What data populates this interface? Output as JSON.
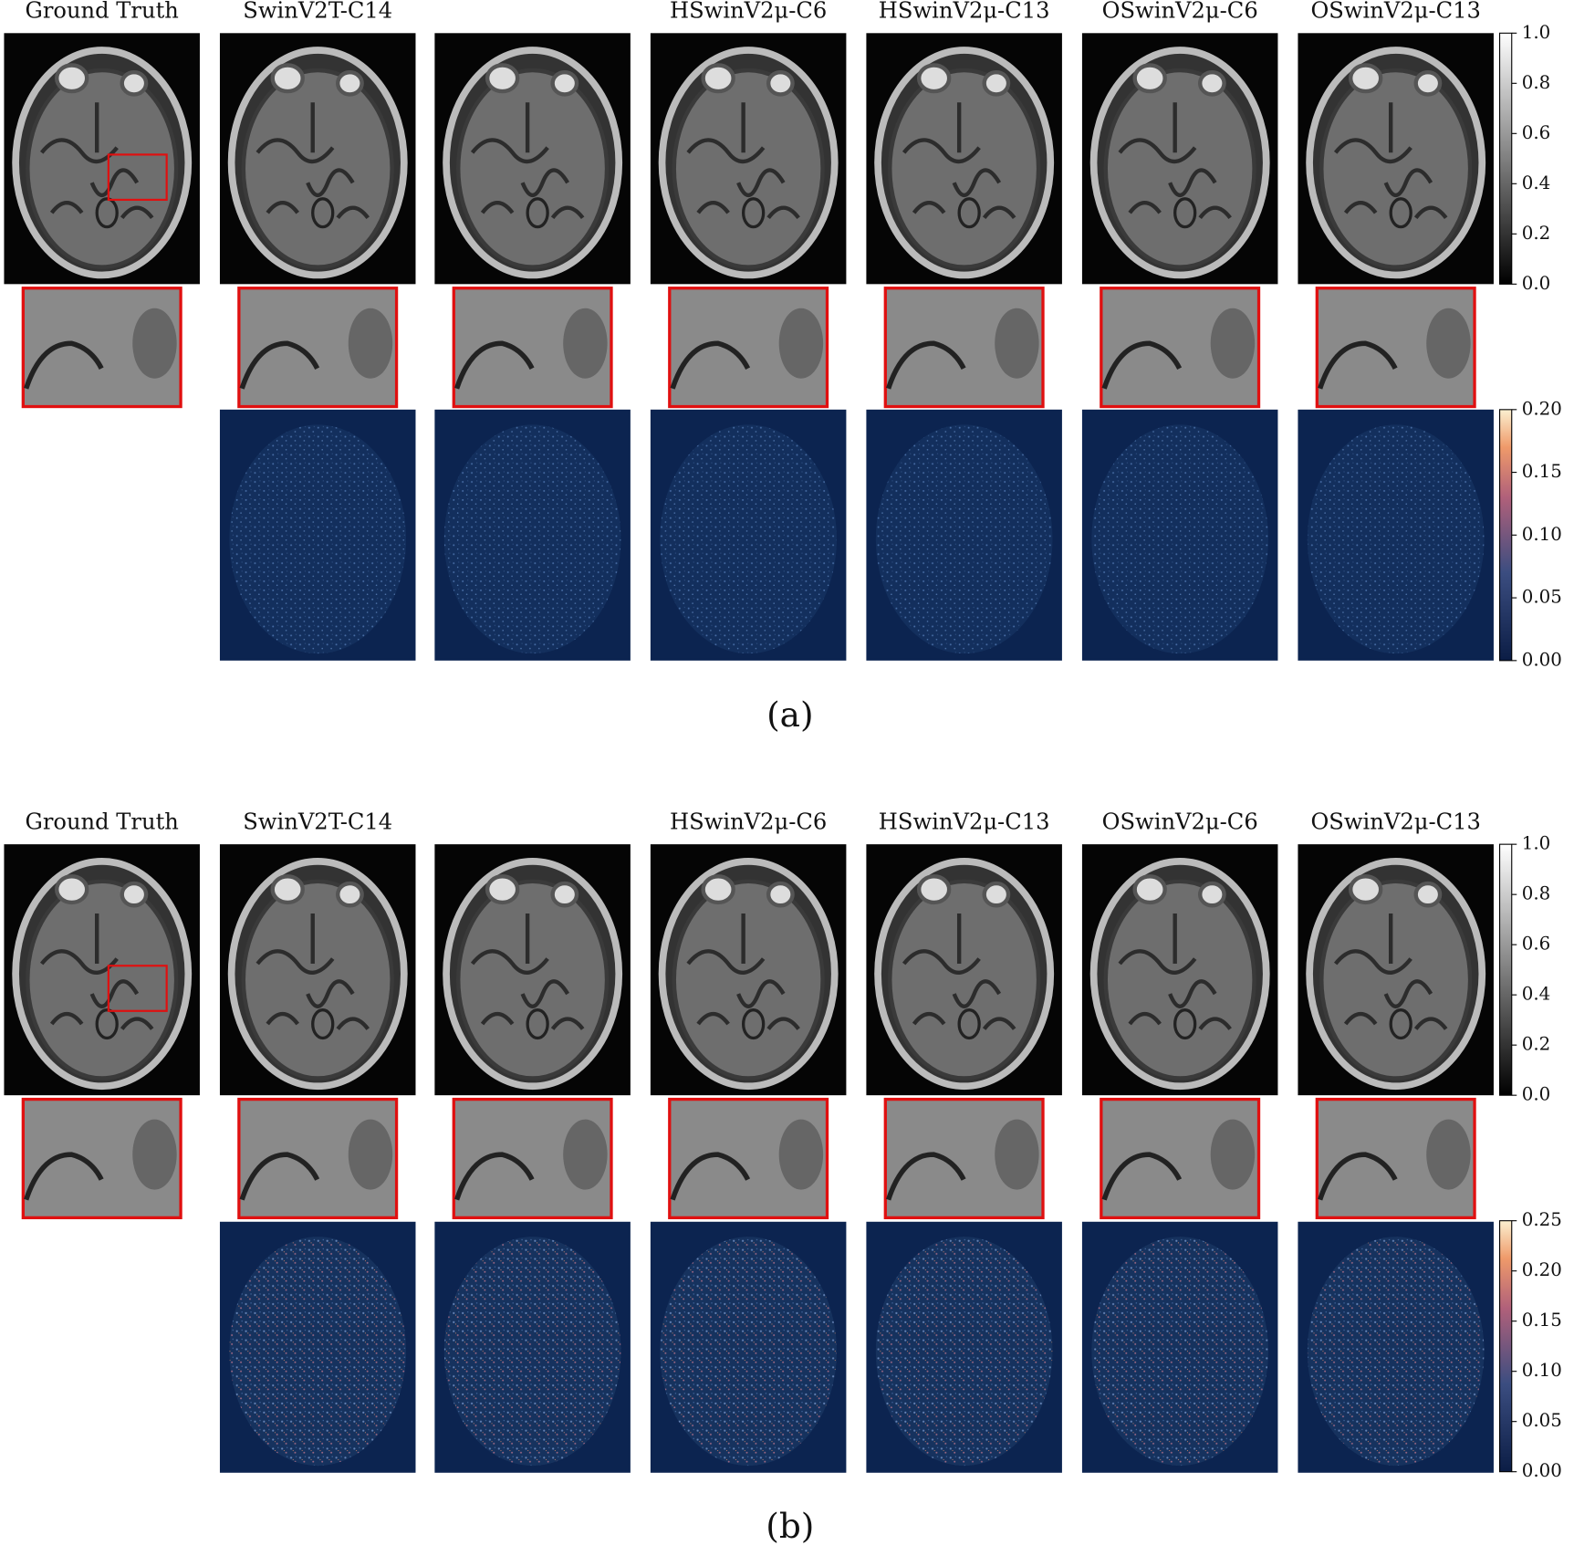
{
  "panels": [
    {
      "label": "(a)",
      "columns": [
        "Ground Truth",
        "SwinV2T-C14",
        "HSwinV2μ-C6",
        "HSwinV2μ-C13",
        "OSwinV2μ-C6",
        "OSwinV2μ-C13"
      ],
      "gray_colorbar_ticks": [
        {
          "value": 0,
          "label": "0.0"
        },
        {
          "value": 0.2,
          "label": "0.2"
        },
        {
          "value": 0.4,
          "label": "0.4"
        },
        {
          "value": 0.6,
          "label": "0.6"
        },
        {
          "value": 0.8,
          "label": "0.8"
        },
        {
          "value": 1,
          "label": "1.0"
        }
      ],
      "error_colorbar_ticks": [
        {
          "value": 0,
          "label": "0.00"
        },
        {
          "value": 0.05,
          "label": "0.05"
        },
        {
          "value": 0.1,
          "label": "0.10"
        },
        {
          "value": 0.15,
          "label": "0.15"
        },
        {
          "value": 0.2,
          "label": "0.20"
        }
      ]
    },
    {
      "label": "(b)",
      "columns": [
        "Ground Truth",
        "SwinV2T-C14",
        "HSwinV2μ-C6",
        "HSwinV2μ-C13",
        "OSwinV2μ-C6",
        "OSwinV2μ-C13"
      ],
      "gray_colorbar_ticks": [
        {
          "value": 0,
          "label": "0.0"
        },
        {
          "value": 0.2,
          "label": "0.2"
        },
        {
          "value": 0.4,
          "label": "0.4"
        },
        {
          "value": 0.6,
          "label": "0.6"
        },
        {
          "value": 0.8,
          "label": "0.8"
        },
        {
          "value": 1,
          "label": "1.0"
        }
      ],
      "error_colorbar_ticks": [
        {
          "value": 0,
          "label": "0.00"
        },
        {
          "value": 0.05,
          "label": "0.05"
        },
        {
          "value": 0.1,
          "label": "0.10"
        },
        {
          "value": 0.15,
          "label": "0.15"
        },
        {
          "value": 0.2,
          "label": "0.20"
        },
        {
          "value": 0.25,
          "label": "0.25"
        }
      ]
    }
  ]
}
